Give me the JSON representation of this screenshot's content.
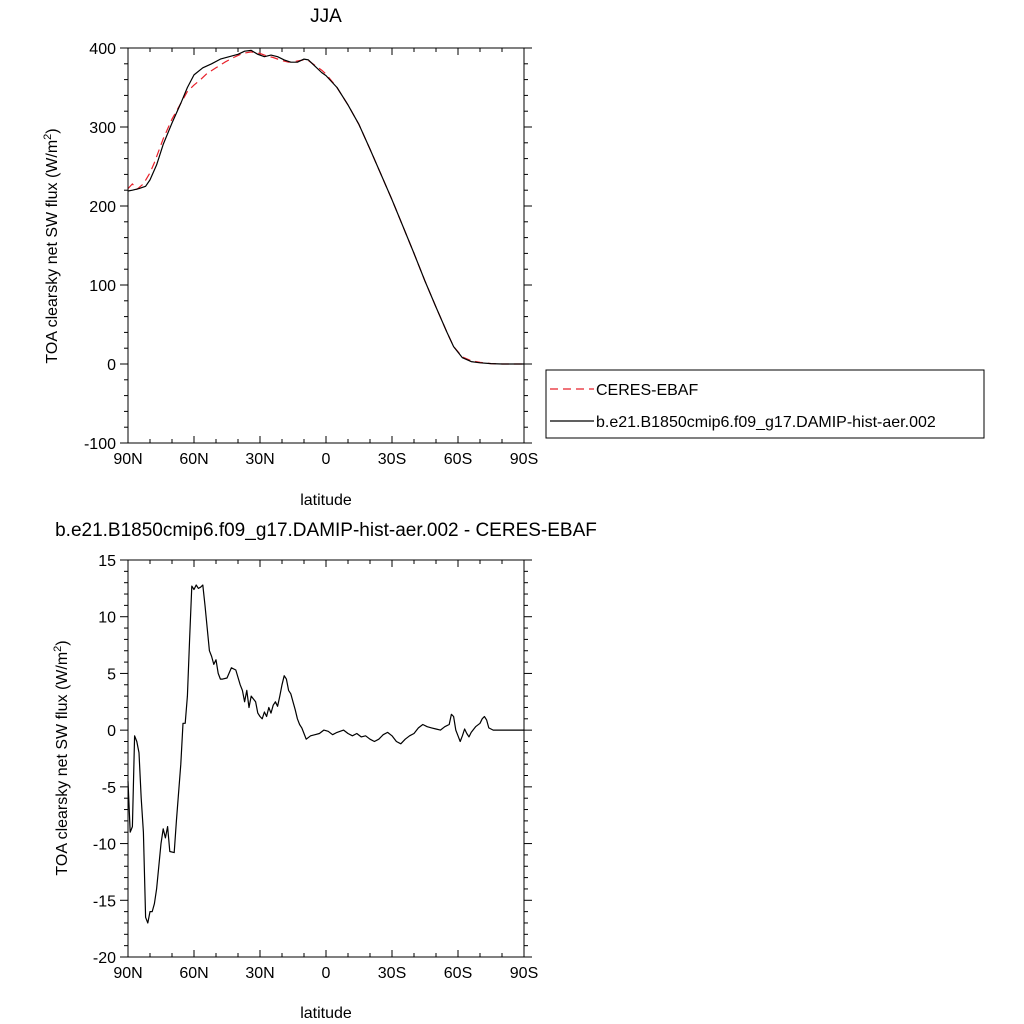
{
  "chart_data": [
    {
      "type": "line",
      "title": "JJA",
      "xlabel": "latitude",
      "ylabel": "TOA clearsky net SW flux (W/m",
      "ylabel_sup": "2",
      "ylabel_close": ")",
      "xlim": [
        90,
        -90
      ],
      "ylim": [
        -100,
        400
      ],
      "xticks": [
        90,
        60,
        30,
        0,
        -30,
        -60,
        -90
      ],
      "xtick_labels": [
        "90N",
        "60N",
        "30N",
        "0",
        "30S",
        "60S",
        "90S"
      ],
      "yticks": [
        -100,
        0,
        100,
        200,
        300,
        400
      ],
      "ytick_labels": [
        "-100",
        "0",
        "100",
        "200",
        "300",
        "400"
      ],
      "legend_position": "right",
      "series": [
        {
          "name": "CERES-EBAF",
          "color": "#e8202a",
          "dash": "dashed",
          "points": [
            [
              90,
              222
            ],
            [
              88,
              228
            ],
            [
              86,
              221
            ],
            [
              83,
              228
            ],
            [
              80,
              242
            ],
            [
              78,
              255
            ],
            [
              74,
              285
            ],
            [
              70,
              310
            ],
            [
              66,
              330
            ],
            [
              63,
              345
            ],
            [
              60,
              353
            ],
            [
              57,
              360
            ],
            [
              54,
              368
            ],
            [
              50,
              375
            ],
            [
              46,
              382
            ],
            [
              42,
              388
            ],
            [
              38,
              393
            ],
            [
              34,
              395
            ],
            [
              30,
              393
            ],
            [
              27,
              390
            ],
            [
              24,
              388
            ],
            [
              20,
              384
            ],
            [
              17,
              382
            ],
            [
              14,
              383
            ],
            [
              12,
              384
            ],
            [
              10,
              385
            ],
            [
              8,
              384
            ],
            [
              5,
              378
            ],
            [
              2,
              372
            ],
            [
              0,
              367
            ],
            [
              -5,
              350
            ],
            [
              -10,
              328
            ],
            [
              -15,
              303
            ],
            [
              -20,
              272
            ],
            [
              -25,
              240
            ],
            [
              -30,
              208
            ],
            [
              -35,
              174
            ],
            [
              -40,
              140
            ],
            [
              -45,
              105
            ],
            [
              -50,
              72
            ],
            [
              -55,
              40
            ],
            [
              -58,
              22
            ],
            [
              -62,
              9
            ],
            [
              -66,
              4
            ],
            [
              -70,
              2
            ],
            [
              -75,
              0.5
            ],
            [
              -80,
              0
            ],
            [
              -85,
              0
            ],
            [
              -90,
              0
            ]
          ]
        },
        {
          "name": "b.e21.B1850cmip6.f09_g17.DAMIP-hist-aer.002",
          "color": "#000000",
          "dash": "solid",
          "points": [
            [
              90,
              219
            ],
            [
              88,
              220
            ],
            [
              85,
              222
            ],
            [
              82,
              225
            ],
            [
              80,
              233
            ],
            [
              77,
              252
            ],
            [
              74,
              278
            ],
            [
              70,
              305
            ],
            [
              66,
              330
            ],
            [
              63,
              350
            ],
            [
              60,
              366
            ],
            [
              56,
              375
            ],
            [
              52,
              380
            ],
            [
              48,
              386
            ],
            [
              44,
              389
            ],
            [
              40,
              392
            ],
            [
              37,
              396
            ],
            [
              34,
              397
            ],
            [
              31,
              392
            ],
            [
              28,
              389
            ],
            [
              25,
              391
            ],
            [
              22,
              389
            ],
            [
              19,
              385
            ],
            [
              16,
              382
            ],
            [
              13,
              382
            ],
            [
              10,
              386
            ],
            [
              8,
              385
            ],
            [
              5,
              377
            ],
            [
              2,
              369
            ],
            [
              0,
              365
            ],
            [
              -5,
              350
            ],
            [
              -10,
              328
            ],
            [
              -15,
              303
            ],
            [
              -20,
              272
            ],
            [
              -25,
              240
            ],
            [
              -30,
              208
            ],
            [
              -35,
              174
            ],
            [
              -40,
              140
            ],
            [
              -45,
              105
            ],
            [
              -50,
              72
            ],
            [
              -55,
              40
            ],
            [
              -58,
              22
            ],
            [
              -62,
              8
            ],
            [
              -66,
              3
            ],
            [
              -70,
              1.5
            ],
            [
              -75,
              0.5
            ],
            [
              -80,
              0
            ],
            [
              -85,
              0
            ],
            [
              -90,
              0
            ]
          ]
        }
      ]
    },
    {
      "type": "line",
      "title": "b.e21.B1850cmip6.f09_g17.DAMIP-hist-aer.002 - CERES-EBAF",
      "xlabel": "latitude",
      "ylabel": "TOA clearsky net SW flux (W/m",
      "ylabel_sup": "2",
      "ylabel_close": ")",
      "xlim": [
        90,
        -90
      ],
      "ylim": [
        -20,
        15
      ],
      "xticks": [
        90,
        60,
        30,
        0,
        -30,
        -60,
        -90
      ],
      "xtick_labels": [
        "90N",
        "60N",
        "30N",
        "0",
        "30S",
        "60S",
        "90S"
      ],
      "yticks": [
        -20,
        -15,
        -10,
        -5,
        0,
        5,
        10,
        15
      ],
      "ytick_labels": [
        "-20",
        "-15",
        "-10",
        "-5",
        "0",
        "5",
        "10",
        "15"
      ],
      "series": [
        {
          "name": "",
          "color": "#000000",
          "dash": "solid",
          "points": [
            [
              90,
              -4.5
            ],
            [
              89,
              -9
            ],
            [
              88,
              -8.5
            ],
            [
              87,
              -0.5
            ],
            [
              86,
              -1
            ],
            [
              85,
              -2
            ],
            [
              84,
              -6
            ],
            [
              83,
              -9
            ],
            [
              82,
              -16.5
            ],
            [
              81,
              -17
            ],
            [
              80,
              -16
            ],
            [
              79,
              -16
            ],
            [
              78,
              -15.3
            ],
            [
              77,
              -14
            ],
            [
              76,
              -12
            ],
            [
              75,
              -10
            ],
            [
              74,
              -8.7
            ],
            [
              73,
              -9.5
            ],
            [
              72,
              -8.5
            ],
            [
              71,
              -10.7
            ],
            [
              69,
              -10.8
            ],
            [
              68,
              -8
            ],
            [
              66,
              -3
            ],
            [
              65,
              0.6
            ],
            [
              64,
              0.6
            ],
            [
              63,
              3
            ],
            [
              62,
              8
            ],
            [
              61,
              12.7
            ],
            [
              60,
              12.4
            ],
            [
              59,
              12.8
            ],
            [
              58,
              12.5
            ],
            [
              57,
              12.6
            ],
            [
              56,
              12.8
            ],
            [
              55,
              11
            ],
            [
              54,
              9
            ],
            [
              53,
              7
            ],
            [
              52,
              6.5
            ],
            [
              51,
              5.8
            ],
            [
              50,
              6.2
            ],
            [
              49,
              5
            ],
            [
              48,
              4.5
            ],
            [
              47,
              4.5
            ],
            [
              45,
              4.6
            ],
            [
              43,
              5.5
            ],
            [
              41,
              5.3
            ],
            [
              39,
              4
            ],
            [
              38,
              3.5
            ],
            [
              37,
              2.5
            ],
            [
              36,
              3.5
            ],
            [
              35,
              2
            ],
            [
              34,
              3
            ],
            [
              32,
              2.5
            ],
            [
              31,
              1.5
            ],
            [
              30,
              1.2
            ],
            [
              29,
              1
            ],
            [
              28,
              1.6
            ],
            [
              27,
              1.2
            ],
            [
              26,
              2
            ],
            [
              25,
              1.5
            ],
            [
              24,
              2.2
            ],
            [
              23,
              2.5
            ],
            [
              22,
              2.1
            ],
            [
              21,
              3
            ],
            [
              20,
              4
            ],
            [
              19,
              4.8
            ],
            [
              18,
              4.5
            ],
            [
              17,
              3.5
            ],
            [
              16,
              3.2
            ],
            [
              15,
              2.5
            ],
            [
              14,
              1.8
            ],
            [
              13,
              1
            ],
            [
              12,
              0.5
            ],
            [
              11,
              0.2
            ],
            [
              10,
              -0.3
            ],
            [
              9,
              -0.8
            ],
            [
              7,
              -0.5
            ],
            [
              5,
              -0.4
            ],
            [
              3,
              -0.3
            ],
            [
              1,
              0
            ],
            [
              -1,
              -0.1
            ],
            [
              -3,
              -0.4
            ],
            [
              -5,
              -0.2
            ],
            [
              -8,
              0
            ],
            [
              -10,
              -0.3
            ],
            [
              -12,
              -0.5
            ],
            [
              -14,
              -0.3
            ],
            [
              -16,
              -0.6
            ],
            [
              -18,
              -0.5
            ],
            [
              -20,
              -0.8
            ],
            [
              -22,
              -1
            ],
            [
              -24,
              -0.8
            ],
            [
              -26,
              -0.4
            ],
            [
              -28,
              -0.2
            ],
            [
              -30,
              -0.5
            ],
            [
              -32,
              -1
            ],
            [
              -34,
              -1.2
            ],
            [
              -36,
              -0.8
            ],
            [
              -38,
              -0.5
            ],
            [
              -40,
              -0.3
            ],
            [
              -42,
              0.2
            ],
            [
              -44,
              0.5
            ],
            [
              -46,
              0.3
            ],
            [
              -48,
              0.2
            ],
            [
              -50,
              0.1
            ],
            [
              -52,
              0
            ],
            [
              -54,
              0.3
            ],
            [
              -56,
              0.5
            ],
            [
              -57,
              1.4
            ],
            [
              -58,
              1.2
            ],
            [
              -59,
              0
            ],
            [
              -60,
              -0.5
            ],
            [
              -61,
              -1
            ],
            [
              -62,
              -0.5
            ],
            [
              -63,
              0.1
            ],
            [
              -64,
              -0.3
            ],
            [
              -65,
              -0.6
            ],
            [
              -66,
              -0.2
            ],
            [
              -68,
              0.3
            ],
            [
              -70,
              0.6
            ],
            [
              -71,
              1
            ],
            [
              -72,
              1.2
            ],
            [
              -73,
              0.9
            ],
            [
              -74,
              0.2
            ],
            [
              -76,
              0
            ],
            [
              -80,
              0
            ],
            [
              -90,
              0
            ]
          ]
        }
      ]
    }
  ]
}
